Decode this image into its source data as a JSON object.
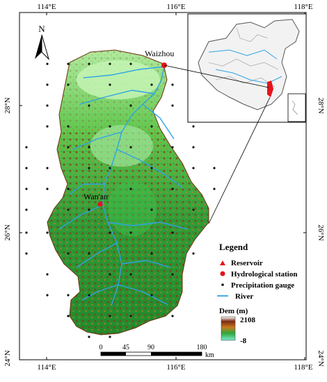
{
  "frame": {
    "top_ticks": [
      "114°E",
      "116°E",
      "118°E"
    ],
    "bottom_ticks": [
      "114°E",
      "116°E",
      "118°E"
    ],
    "left_ticks": [
      "28°N",
      "26°N",
      "24°N"
    ],
    "right_ticks": [
      "28°N",
      "26°N",
      "24°N"
    ]
  },
  "north_arrow": {
    "label": "N"
  },
  "places": {
    "waizhou": "Waizhou",
    "wanan": "Wan'an"
  },
  "legend": {
    "title": "Legend",
    "items": [
      {
        "label": "Reservoir",
        "symbol": "triangle",
        "color": "#e4141b"
      },
      {
        "label": "Hydrological station",
        "symbol": "circle",
        "color": "#e4141b"
      },
      {
        "label": "Precipitation gauge",
        "symbol": "dot",
        "color": "#111111"
      },
      {
        "label": "River",
        "symbol": "line",
        "color": "#2fa3e6"
      }
    ],
    "dem_title": "Dem (m)",
    "dem_max": "2108",
    "dem_min": "-8"
  },
  "scale_bar": {
    "labels": [
      "0",
      "45",
      "90",
      "180"
    ],
    "unit": "km"
  },
  "colors": {
    "dem_low": "#5fd8b0",
    "dem_mid": "#2ea83a",
    "dem_high": "#8a2e12",
    "dem_peak": "#f4f4f4",
    "river": "#2fa3e6",
    "station": "#e4141b"
  }
}
